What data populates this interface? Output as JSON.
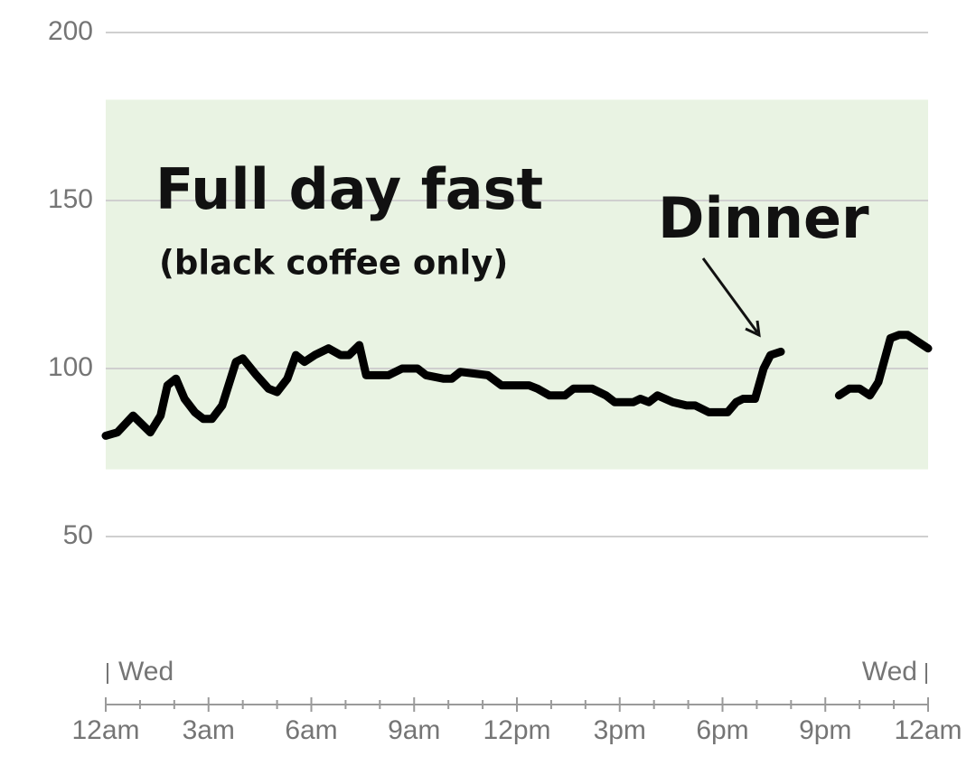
{
  "chart_data": {
    "type": "line",
    "color": "#000000",
    "x": [
      0,
      0.34,
      0.8,
      1.3,
      1.6,
      1.8,
      2.05,
      2.3,
      2.6,
      2.85,
      3.1,
      3.4,
      3.8,
      4.0,
      4.4,
      4.75,
      5.0,
      5.3,
      5.55,
      5.8,
      6.1,
      6.5,
      6.85,
      7.1,
      7.4,
      7.6,
      8.25,
      8.65,
      9.1,
      9.35,
      9.85,
      10.1,
      10.35,
      11.15,
      11.55,
      12.35,
      12.6,
      12.95,
      13.4,
      13.65,
      14.2,
      14.6,
      14.85,
      15.4,
      15.6,
      15.85,
      16.1,
      16.55,
      16.95,
      17.2,
      17.6,
      18.15,
      18.4,
      18.6,
      18.95,
      19.2,
      19.4,
      19.7,
      20.5,
      21.4,
      21.7,
      22.0,
      22.3,
      22.55,
      22.9,
      23.15,
      23.4,
      24
    ],
    "values": [
      80,
      81,
      86,
      81,
      86,
      95,
      97,
      91,
      87,
      85,
      85,
      89,
      102,
      103,
      98,
      94,
      93,
      97,
      104,
      102,
      104,
      106,
      104,
      104,
      107,
      98,
      98,
      100,
      100,
      98,
      97,
      97,
      99,
      98,
      95,
      95,
      94,
      92,
      92,
      94,
      94,
      92,
      90,
      90,
      91,
      90,
      92,
      90,
      89,
      89,
      87,
      87,
      90,
      91,
      91,
      100,
      104,
      105,
      null,
      92,
      94,
      94,
      92,
      96,
      109,
      110,
      110,
      106
    ],
    "xlim": [
      0,
      24
    ],
    "xticks": [
      {
        "value": 0,
        "label": "12am"
      },
      {
        "value": 3,
        "label": "3am"
      },
      {
        "value": 6,
        "label": "6am"
      },
      {
        "value": 9,
        "label": "9am"
      },
      {
        "value": 12,
        "label": "12pm"
      },
      {
        "value": 15,
        "label": "3pm"
      },
      {
        "value": 18,
        "label": "6pm"
      },
      {
        "value": 21,
        "label": "9pm"
      },
      {
        "value": 24,
        "label": "12am"
      }
    ],
    "ylim": [
      0,
      200
    ],
    "yticks": [
      50,
      100,
      150,
      200
    ],
    "grid": true,
    "target_range": [
      70,
      180
    ],
    "target_color": "#e9f3e3",
    "day_labels": [
      "Wed",
      "Wed"
    ],
    "annotations": [
      "Full day fast",
      "(black coffee only)",
      "Dinner"
    ]
  }
}
